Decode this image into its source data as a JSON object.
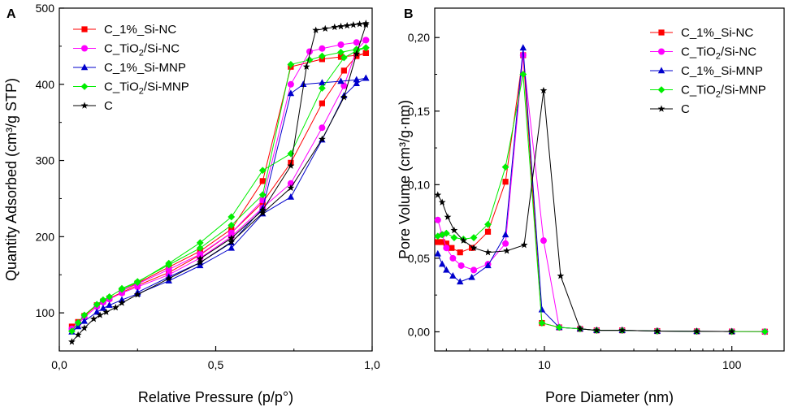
{
  "chart_data": [
    {
      "panel": "A",
      "type": "line",
      "xlabel": "Relative Pressure (p/p°)",
      "ylabel": "Quantity Adsorbed (cm³/g STP)",
      "xlim": [
        0.0,
        1.0
      ],
      "ylim": [
        50,
        500
      ],
      "xticks": [
        "0,0",
        "0,5",
        "1,0"
      ],
      "yticks": [
        "100",
        "200",
        "300",
        "400",
        "500"
      ],
      "legend_position": "top-left",
      "series": [
        {
          "name": "C_1%_Si-NC",
          "label_base": "C_1%_Si-NC",
          "label_sub": "",
          "label_rest": "",
          "color": "#ff0000",
          "marker": "square",
          "adsorption": [
            [
              0.04,
              82
            ],
            [
              0.06,
              88
            ],
            [
              0.08,
              96
            ],
            [
              0.12,
              110
            ],
            [
              0.14,
              115
            ],
            [
              0.16,
              119
            ],
            [
              0.2,
              127
            ],
            [
              0.25,
              136
            ],
            [
              0.35,
              153
            ],
            [
              0.45,
              176
            ],
            [
              0.55,
              205
            ],
            [
              0.65,
              245
            ],
            [
              0.74,
              297
            ],
            [
              0.84,
              375
            ],
            [
              0.91,
              418
            ],
            [
              0.95,
              437
            ],
            [
              0.98,
              441
            ]
          ],
          "desorption": [
            [
              0.98,
              441
            ],
            [
              0.95,
              438
            ],
            [
              0.9,
              436
            ],
            [
              0.84,
              433
            ],
            [
              0.74,
              423
            ],
            [
              0.65,
              273
            ],
            [
              0.55,
              210
            ],
            [
              0.45,
              181
            ],
            [
              0.35,
              160
            ],
            [
              0.25,
              139
            ],
            [
              0.2,
              129
            ]
          ]
        },
        {
          "name": "C_TiO2/Si-NC",
          "label_base": "C_TiO",
          "label_sub": "2",
          "label_rest": "/Si-NC",
          "color": "#ff00ff",
          "marker": "circle",
          "adsorption": [
            [
              0.04,
              79
            ],
            [
              0.06,
              86
            ],
            [
              0.08,
              94
            ],
            [
              0.12,
              108
            ],
            [
              0.14,
              114
            ],
            [
              0.16,
              118
            ],
            [
              0.2,
              126
            ],
            [
              0.25,
              134
            ],
            [
              0.35,
              150
            ],
            [
              0.45,
              172
            ],
            [
              0.55,
              200
            ],
            [
              0.65,
              238
            ],
            [
              0.74,
              270
            ],
            [
              0.84,
              343
            ],
            [
              0.91,
              398
            ],
            [
              0.95,
              445
            ],
            [
              0.98,
              458
            ]
          ],
          "desorption": [
            [
              0.98,
              458
            ],
            [
              0.95,
              455
            ],
            [
              0.9,
              452
            ],
            [
              0.84,
              447
            ],
            [
              0.8,
              443
            ],
            [
              0.74,
              400
            ],
            [
              0.65,
              248
            ],
            [
              0.55,
              205
            ],
            [
              0.45,
              177
            ],
            [
              0.35,
              157
            ],
            [
              0.25,
              138
            ],
            [
              0.2,
              129
            ]
          ]
        },
        {
          "name": "C_1%_Si-MNP",
          "label_base": "C_1%_Si-MNP",
          "label_sub": "",
          "label_rest": "",
          "color": "#0000cc",
          "marker": "triangle",
          "adsorption": [
            [
              0.04,
              75
            ],
            [
              0.06,
              82
            ],
            [
              0.08,
              89
            ],
            [
              0.12,
              101
            ],
            [
              0.14,
              106
            ],
            [
              0.16,
              110
            ],
            [
              0.2,
              117
            ],
            [
              0.25,
              125
            ],
            [
              0.35,
              142
            ],
            [
              0.45,
              162
            ],
            [
              0.55,
              185
            ],
            [
              0.65,
              230
            ],
            [
              0.74,
              252
            ],
            [
              0.84,
              327
            ],
            [
              0.91,
              385
            ],
            [
              0.95,
              401
            ],
            [
              0.98,
              408
            ]
          ],
          "desorption": [
            [
              0.98,
              408
            ],
            [
              0.95,
              406
            ],
            [
              0.9,
              404
            ],
            [
              0.84,
              402
            ],
            [
              0.78,
              400
            ],
            [
              0.74,
              388
            ],
            [
              0.65,
              237
            ],
            [
              0.55,
              192
            ],
            [
              0.45,
              166
            ],
            [
              0.35,
              147
            ],
            [
              0.25,
              127
            ]
          ]
        },
        {
          "name": "C_TiO2/Si-MNP",
          "label_base": "C_TiO",
          "label_sub": "2",
          "label_rest": "/Si-MNP",
          "color": "#00ee00",
          "marker": "diamond",
          "adsorption": [
            [
              0.04,
              76
            ],
            [
              0.06,
              87
            ],
            [
              0.08,
              97
            ],
            [
              0.12,
              111
            ],
            [
              0.14,
              117
            ],
            [
              0.16,
              121
            ],
            [
              0.2,
              131
            ],
            [
              0.25,
              140
            ],
            [
              0.35,
              165
            ],
            [
              0.45,
              192
            ],
            [
              0.55,
              226
            ],
            [
              0.65,
              287
            ],
            [
              0.74,
              309
            ],
            [
              0.84,
              395
            ],
            [
              0.91,
              435
            ],
            [
              0.95,
              444
            ],
            [
              0.98,
              448
            ]
          ],
          "desorption": [
            [
              0.98,
              448
            ],
            [
              0.95,
              446
            ],
            [
              0.9,
              442
            ],
            [
              0.84,
              437
            ],
            [
              0.8,
              432
            ],
            [
              0.74,
              426
            ],
            [
              0.65,
              255
            ],
            [
              0.55,
              215
            ],
            [
              0.45,
              185
            ],
            [
              0.35,
              163
            ],
            [
              0.25,
              141
            ],
            [
              0.2,
              132
            ]
          ]
        },
        {
          "name": "C",
          "label_base": "C",
          "label_sub": "",
          "label_rest": "",
          "color": "#000000",
          "marker": "star",
          "adsorption": [
            [
              0.04,
              62
            ],
            [
              0.06,
              71
            ],
            [
              0.08,
              80
            ],
            [
              0.11,
              92
            ],
            [
              0.13,
              97
            ],
            [
              0.15,
              101
            ],
            [
              0.18,
              107
            ],
            [
              0.2,
              113
            ],
            [
              0.25,
              124
            ],
            [
              0.35,
              145
            ],
            [
              0.45,
              166
            ],
            [
              0.55,
              193
            ],
            [
              0.65,
              231
            ],
            [
              0.74,
              264
            ],
            [
              0.84,
              328
            ],
            [
              0.91,
              383
            ],
            [
              0.95,
              440
            ],
            [
              0.98,
              478
            ]
          ],
          "desorption": [
            [
              0.98,
              480
            ],
            [
              0.96,
              479
            ],
            [
              0.94,
              478
            ],
            [
              0.92,
              477
            ],
            [
              0.9,
              476
            ],
            [
              0.88,
              475
            ],
            [
              0.85,
              473
            ],
            [
              0.82,
              471
            ],
            [
              0.79,
              423
            ],
            [
              0.74,
              293
            ],
            [
              0.65,
              235
            ],
            [
              0.55,
              198
            ],
            [
              0.45,
              171
            ]
          ]
        }
      ]
    },
    {
      "panel": "B",
      "type": "line",
      "xscale": "log",
      "xlabel": "Pore Diameter (nm)",
      "ylabel": "Pore Volume (cm³/g·nm)",
      "xlim": [
        2.6,
        190
      ],
      "ylim": [
        -0.013,
        0.22
      ],
      "xticks": [
        "10",
        "100"
      ],
      "yticks": [
        "0,00",
        "0,05",
        "0,10",
        "0,15",
        "0,20"
      ],
      "legend_position": "top-right",
      "series": [
        {
          "name": "C_1%_Si-NC",
          "label_base": "C_1%_Si-NC",
          "label_sub": "",
          "label_rest": "",
          "color": "#ff0000",
          "marker": "square",
          "points": [
            [
              2.7,
              0.061
            ],
            [
              2.85,
              0.061
            ],
            [
              3.0,
              0.06
            ],
            [
              3.2,
              0.057
            ],
            [
              3.55,
              0.054
            ],
            [
              4.1,
              0.057
            ],
            [
              5.0,
              0.068
            ],
            [
              6.2,
              0.102
            ],
            [
              7.7,
              0.188
            ],
            [
              9.7,
              0.006
            ],
            [
              12,
              0.003
            ],
            [
              15.5,
              0.002
            ],
            [
              19,
              0.001
            ],
            [
              26,
              0.001
            ],
            [
              40,
              0.0005
            ],
            [
              65,
              0.0003
            ],
            [
              100,
              0.0002
            ],
            [
              150,
              0.0001
            ]
          ]
        },
        {
          "name": "C_TiO2/Si-NC",
          "label_base": "C_TiO",
          "label_sub": "2",
          "label_rest": "/Si-NC",
          "color": "#ff00ff",
          "marker": "circle",
          "points": [
            [
              2.7,
              0.076
            ],
            [
              2.85,
              0.066
            ],
            [
              3.0,
              0.057
            ],
            [
              3.25,
              0.05
            ],
            [
              3.6,
              0.045
            ],
            [
              4.2,
              0.042
            ],
            [
              5.0,
              0.046
            ],
            [
              6.2,
              0.06
            ],
            [
              7.7,
              0.188
            ],
            [
              9.9,
              0.062
            ],
            [
              12,
              0.003
            ],
            [
              15.5,
              0.002
            ],
            [
              19,
              0.001
            ],
            [
              26,
              0.001
            ],
            [
              40,
              0.0005
            ],
            [
              65,
              0.0003
            ],
            [
              100,
              0.0002
            ],
            [
              150,
              0.0001
            ]
          ]
        },
        {
          "name": "C_1%_Si-MNP",
          "label_base": "C_1%_Si-MNP",
          "label_sub": "",
          "label_rest": "",
          "color": "#0000cc",
          "marker": "triangle",
          "points": [
            [
              2.7,
              0.053
            ],
            [
              2.85,
              0.046
            ],
            [
              3.0,
              0.042
            ],
            [
              3.25,
              0.038
            ],
            [
              3.55,
              0.034
            ],
            [
              4.1,
              0.037
            ],
            [
              5.0,
              0.045
            ],
            [
              6.2,
              0.066
            ],
            [
              7.7,
              0.193
            ],
            [
              9.7,
              0.015
            ],
            [
              12,
              0.003
            ],
            [
              15.5,
              0.002
            ],
            [
              19,
              0.001
            ],
            [
              26,
              0.001
            ],
            [
              40,
              0.0005
            ],
            [
              65,
              0.0003
            ],
            [
              100,
              0.0002
            ]
          ]
        },
        {
          "name": "C_TiO2/Si-MNP",
          "label_base": "C_TiO",
          "label_sub": "2",
          "label_rest": "/Si-MNP",
          "color": "#00ee00",
          "marker": "diamond",
          "points": [
            [
              2.7,
              0.065
            ],
            [
              2.85,
              0.066
            ],
            [
              3.0,
              0.067
            ],
            [
              3.3,
              0.064
            ],
            [
              3.7,
              0.063
            ],
            [
              4.2,
              0.064
            ],
            [
              5.0,
              0.073
            ],
            [
              6.2,
              0.112
            ],
            [
              7.7,
              0.175
            ],
            [
              9.7,
              0.006
            ],
            [
              12,
              0.003
            ],
            [
              15.5,
              0.002
            ],
            [
              19,
              0.001
            ],
            [
              26,
              0.001
            ],
            [
              40,
              0.0005
            ],
            [
              65,
              0.0003
            ],
            [
              100,
              0.0002
            ],
            [
              150,
              0.0001
            ]
          ]
        },
        {
          "name": "C",
          "label_base": "C",
          "label_sub": "",
          "label_rest": "",
          "color": "#000000",
          "marker": "star",
          "points": [
            [
              2.7,
              0.093
            ],
            [
              2.85,
              0.088
            ],
            [
              3.05,
              0.078
            ],
            [
              3.3,
              0.069
            ],
            [
              3.7,
              0.062
            ],
            [
              4.2,
              0.057
            ],
            [
              5.0,
              0.054
            ],
            [
              6.3,
              0.055
            ],
            [
              7.8,
              0.059
            ],
            [
              9.9,
              0.164
            ],
            [
              12.2,
              0.038
            ],
            [
              15.5,
              0.002
            ],
            [
              19,
              0.001
            ],
            [
              26,
              0.001
            ],
            [
              40,
              0.0005
            ],
            [
              65,
              0.0003
            ],
            [
              100,
              0.0002
            ]
          ]
        }
      ]
    }
  ]
}
